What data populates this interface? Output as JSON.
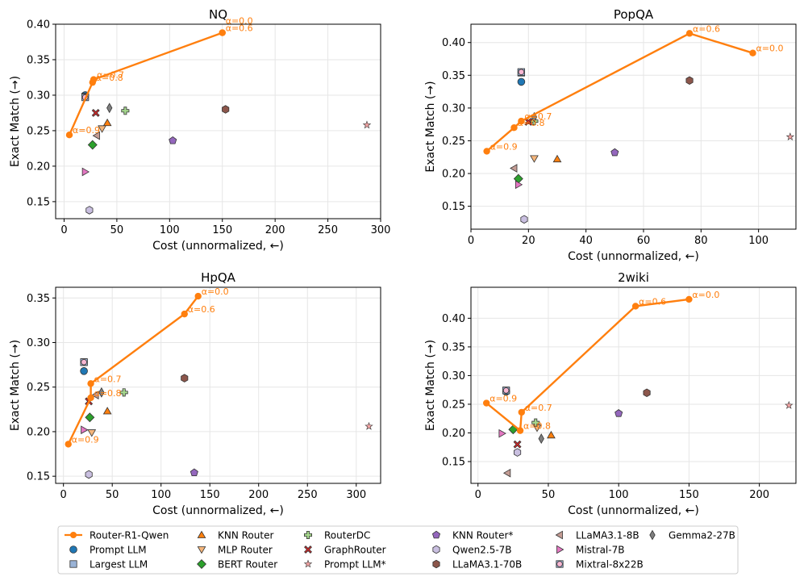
{
  "chart_data": [
    {
      "type": "scatter",
      "title": "NQ",
      "xlabel": "Cost (unnormalized, ←)",
      "ylabel": "Exact Match (→)",
      "xlim": [
        -8,
        300
      ],
      "ylim": [
        0.126,
        0.4
      ],
      "xticks": [
        0,
        50,
        100,
        150,
        200,
        250,
        300
      ],
      "yticks": [
        0.15,
        0.2,
        0.25,
        0.3,
        0.35,
        0.4
      ],
      "ytick_labels": [
        "0.15",
        "0.20",
        "0.25",
        "0.30",
        "0.35",
        "0.40"
      ],
      "grid": true,
      "frontier": [
        {
          "x": 5,
          "y": 0.244,
          "label": "α=0.9"
        },
        {
          "x": 27,
          "y": 0.318,
          "label": "α=0.8"
        },
        {
          "x": 28,
          "y": 0.322,
          "label": "α=0.7"
        },
        {
          "x": 150,
          "y": 0.388,
          "label": "α=0.6"
        },
        {
          "x": 150,
          "y": 0.388,
          "label": "α=0.0"
        }
      ],
      "points": [
        {
          "m": "prompt",
          "x": 20,
          "y": 0.3
        },
        {
          "m": "largest",
          "x": 20,
          "y": 0.298
        },
        {
          "m": "knn",
          "x": 41,
          "y": 0.261
        },
        {
          "m": "mlp",
          "x": 36,
          "y": 0.253
        },
        {
          "m": "bert",
          "x": 27,
          "y": 0.23
        },
        {
          "m": "routerdc",
          "x": 58,
          "y": 0.278
        },
        {
          "m": "graph",
          "x": 30,
          "y": 0.275
        },
        {
          "m": "promptstar",
          "x": 287,
          "y": 0.258
        },
        {
          "m": "knnstar",
          "x": 103,
          "y": 0.236
        },
        {
          "m": "qwen",
          "x": 24,
          "y": 0.138
        },
        {
          "m": "llama70",
          "x": 153,
          "y": 0.28
        },
        {
          "m": "llama8",
          "x": 31,
          "y": 0.243
        },
        {
          "m": "mistral7",
          "x": 20,
          "y": 0.192
        },
        {
          "m": "mixtral",
          "x": 20,
          "y": 0.297
        },
        {
          "m": "gemma",
          "x": 43,
          "y": 0.282
        }
      ]
    },
    {
      "type": "scatter",
      "title": "PopQA",
      "xlabel": "Cost (unnormalized, ←)",
      "ylabel": "Exact Match (→)",
      "xlim": [
        0,
        113
      ],
      "ylim": [
        0.115,
        0.428
      ],
      "xticks": [
        0,
        20,
        40,
        60,
        80,
        100
      ],
      "yticks": [
        0.15,
        0.2,
        0.25,
        0.3,
        0.35,
        0.4
      ],
      "ytick_labels": [
        "0.15",
        "0.20",
        "0.25",
        "0.30",
        "0.35",
        "0.40"
      ],
      "grid": true,
      "frontier": [
        {
          "x": 5.5,
          "y": 0.234,
          "label": "α=0.9"
        },
        {
          "x": 15,
          "y": 0.27,
          "label": "α=0.8"
        },
        {
          "x": 17.5,
          "y": 0.28,
          "label": "α=0.7"
        },
        {
          "x": 76,
          "y": 0.414,
          "label": "α=0.6"
        },
        {
          "x": 98,
          "y": 0.384,
          "label": "α=0.0"
        }
      ],
      "points": [
        {
          "m": "prompt",
          "x": 17.5,
          "y": 0.34
        },
        {
          "m": "largest",
          "x": 17.5,
          "y": 0.354
        },
        {
          "m": "knn",
          "x": 30,
          "y": 0.222
        },
        {
          "m": "mlp",
          "x": 22,
          "y": 0.223
        },
        {
          "m": "bert",
          "x": 16.5,
          "y": 0.192
        },
        {
          "m": "routerdc",
          "x": 22,
          "y": 0.28
        },
        {
          "m": "graph",
          "x": 20,
          "y": 0.279
        },
        {
          "m": "promptstar",
          "x": 111,
          "y": 0.256
        },
        {
          "m": "knnstar",
          "x": 50,
          "y": 0.232
        },
        {
          "m": "qwen",
          "x": 18.5,
          "y": 0.13
        },
        {
          "m": "llama70",
          "x": 76,
          "y": 0.342
        },
        {
          "m": "llama8",
          "x": 15,
          "y": 0.208
        },
        {
          "m": "mistral7",
          "x": 16.5,
          "y": 0.183
        },
        {
          "m": "mixtral",
          "x": 17.5,
          "y": 0.355
        },
        {
          "m": "gemma",
          "x": 22,
          "y": 0.286
        }
      ]
    },
    {
      "type": "scatter",
      "title": "HpQA",
      "xlabel": "Cost (unnormalized, ←)",
      "ylabel": "Exact Match (→)",
      "xlim": [
        -8,
        325
      ],
      "ylim": [
        0.142,
        0.362
      ],
      "xticks": [
        0,
        50,
        100,
        150,
        200,
        250,
        300
      ],
      "yticks": [
        0.15,
        0.2,
        0.25,
        0.3,
        0.35
      ],
      "ytick_labels": [
        "0.15",
        "0.20",
        "0.25",
        "0.30",
        "0.35"
      ],
      "grid": true,
      "frontier": [
        {
          "x": 5,
          "y": 0.186,
          "label": "α=0.9"
        },
        {
          "x": 28,
          "y": 0.238,
          "label": "α=0.8"
        },
        {
          "x": 28,
          "y": 0.254,
          "label": "α=0.7"
        },
        {
          "x": 124,
          "y": 0.332,
          "label": "α=0.6"
        },
        {
          "x": 138,
          "y": 0.352,
          "label": "α=0.0"
        }
      ],
      "points": [
        {
          "m": "prompt",
          "x": 21,
          "y": 0.268
        },
        {
          "m": "largest",
          "x": 21,
          "y": 0.278
        },
        {
          "m": "knn",
          "x": 45,
          "y": 0.223
        },
        {
          "m": "mlp",
          "x": 29,
          "y": 0.199
        },
        {
          "m": "bert",
          "x": 27,
          "y": 0.216
        },
        {
          "m": "routerdc",
          "x": 62,
          "y": 0.244
        },
        {
          "m": "graph",
          "x": 26,
          "y": 0.234
        },
        {
          "m": "promptstar",
          "x": 313,
          "y": 0.206
        },
        {
          "m": "knnstar",
          "x": 134,
          "y": 0.154
        },
        {
          "m": "qwen",
          "x": 26,
          "y": 0.152
        },
        {
          "m": "llama70",
          "x": 124,
          "y": 0.26
        },
        {
          "m": "llama8",
          "x": 33,
          "y": 0.241
        },
        {
          "m": "mistral7",
          "x": 21,
          "y": 0.202
        },
        {
          "m": "mixtral",
          "x": 21,
          "y": 0.278
        },
        {
          "m": "gemma",
          "x": 39,
          "y": 0.244
        }
      ]
    },
    {
      "type": "scatter",
      "title": "2wiki",
      "xlabel": "Cost (unnormalized, ←)",
      "ylabel": "Exact Match (→)",
      "xlim": [
        -5,
        226
      ],
      "ylim": [
        0.112,
        0.454
      ],
      "xticks": [
        0,
        50,
        100,
        150,
        200
      ],
      "yticks": [
        0.15,
        0.2,
        0.25,
        0.3,
        0.35,
        0.4
      ],
      "ytick_labels": [
        "0.15",
        "0.20",
        "0.25",
        "0.30",
        "0.35",
        "0.40"
      ],
      "grid": true,
      "frontier": [
        {
          "x": 6,
          "y": 0.252,
          "label": "α=0.9"
        },
        {
          "x": 30,
          "y": 0.204,
          "label": "α=0.8"
        },
        {
          "x": 31,
          "y": 0.236,
          "label": "α=0.7"
        },
        {
          "x": 112,
          "y": 0.421,
          "label": "α=0.6"
        },
        {
          "x": 150,
          "y": 0.433,
          "label": "α=0.0"
        }
      ],
      "points": [
        {
          "m": "prompt",
          "x": 20,
          "y": 0.272
        },
        {
          "m": "largest",
          "x": 20,
          "y": 0.274
        },
        {
          "m": "knn",
          "x": 52,
          "y": 0.196
        },
        {
          "m": "mlp",
          "x": 42,
          "y": 0.209
        },
        {
          "m": "bert",
          "x": 25,
          "y": 0.206
        },
        {
          "m": "routerdc",
          "x": 41,
          "y": 0.218
        },
        {
          "m": "graph",
          "x": 28,
          "y": 0.18
        },
        {
          "m": "promptstar",
          "x": 221,
          "y": 0.248
        },
        {
          "m": "knnstar",
          "x": 100,
          "y": 0.234
        },
        {
          "m": "qwen",
          "x": 28,
          "y": 0.166
        },
        {
          "m": "llama70",
          "x": 120,
          "y": 0.27
        },
        {
          "m": "llama8",
          "x": 21,
          "y": 0.13
        },
        {
          "m": "mistral7",
          "x": 17,
          "y": 0.199
        },
        {
          "m": "mixtral",
          "x": 20,
          "y": 0.274
        },
        {
          "m": "gemma",
          "x": 45,
          "y": 0.19
        }
      ]
    }
  ],
  "markers": {
    "prompt": {
      "shape": "circle",
      "color": "#1f77b4"
    },
    "largest": {
      "shape": "square",
      "color": "#9ab3d6"
    },
    "knn": {
      "shape": "triangle-up",
      "color": "#ff7f0e"
    },
    "mlp": {
      "shape": "triangle-down",
      "color": "#f5b57a"
    },
    "bert": {
      "shape": "diamond",
      "color": "#2ca02c"
    },
    "routerdc": {
      "shape": "plus",
      "color": "#a6d88e"
    },
    "graph": {
      "shape": "x",
      "color": "#d62728"
    },
    "promptstar": {
      "shape": "star",
      "color": "#f2a3a3"
    },
    "knnstar": {
      "shape": "pentagon",
      "color": "#9467bd"
    },
    "qwen": {
      "shape": "hexagon",
      "color": "#c9bfe0"
    },
    "llama70": {
      "shape": "hexagon",
      "color": "#8c564b"
    },
    "llama8": {
      "shape": "triangle-left",
      "color": "#c49c94"
    },
    "mistral7": {
      "shape": "triangle-right",
      "color": "#e377c2"
    },
    "mixtral": {
      "shape": "circle-in-square",
      "color": "#f7b6d2"
    },
    "gemma": {
      "shape": "thin-diamond",
      "color": "#7f7f7f"
    }
  },
  "frontier_color": "#ff7f0e",
  "legend": {
    "placement": "bottom",
    "entries": [
      {
        "key": "frontier",
        "label": "Router-R1-Qwen"
      },
      {
        "key": "prompt",
        "label": "Prompt LLM"
      },
      {
        "key": "largest",
        "label": "Largest LLM"
      },
      {
        "key": "knn",
        "label": "KNN Router"
      },
      {
        "key": "mlp",
        "label": "MLP Router"
      },
      {
        "key": "bert",
        "label": "BERT Router"
      },
      {
        "key": "routerdc",
        "label": "RouterDC"
      },
      {
        "key": "graph",
        "label": "GraphRouter"
      },
      {
        "key": "promptstar",
        "label": "Prompt LLM*"
      },
      {
        "key": "knnstar",
        "label": "KNN Router*"
      },
      {
        "key": "qwen",
        "label": "Qwen2.5-7B"
      },
      {
        "key": "llama70",
        "label": "LLaMA3.1-70B"
      },
      {
        "key": "llama8",
        "label": "LLaMA3.1-8B"
      },
      {
        "key": "mistral7",
        "label": "Mistral-7B"
      },
      {
        "key": "mixtral",
        "label": "Mixtral-8x22B"
      },
      {
        "key": "gemma",
        "label": "Gemma2-27B"
      }
    ]
  }
}
